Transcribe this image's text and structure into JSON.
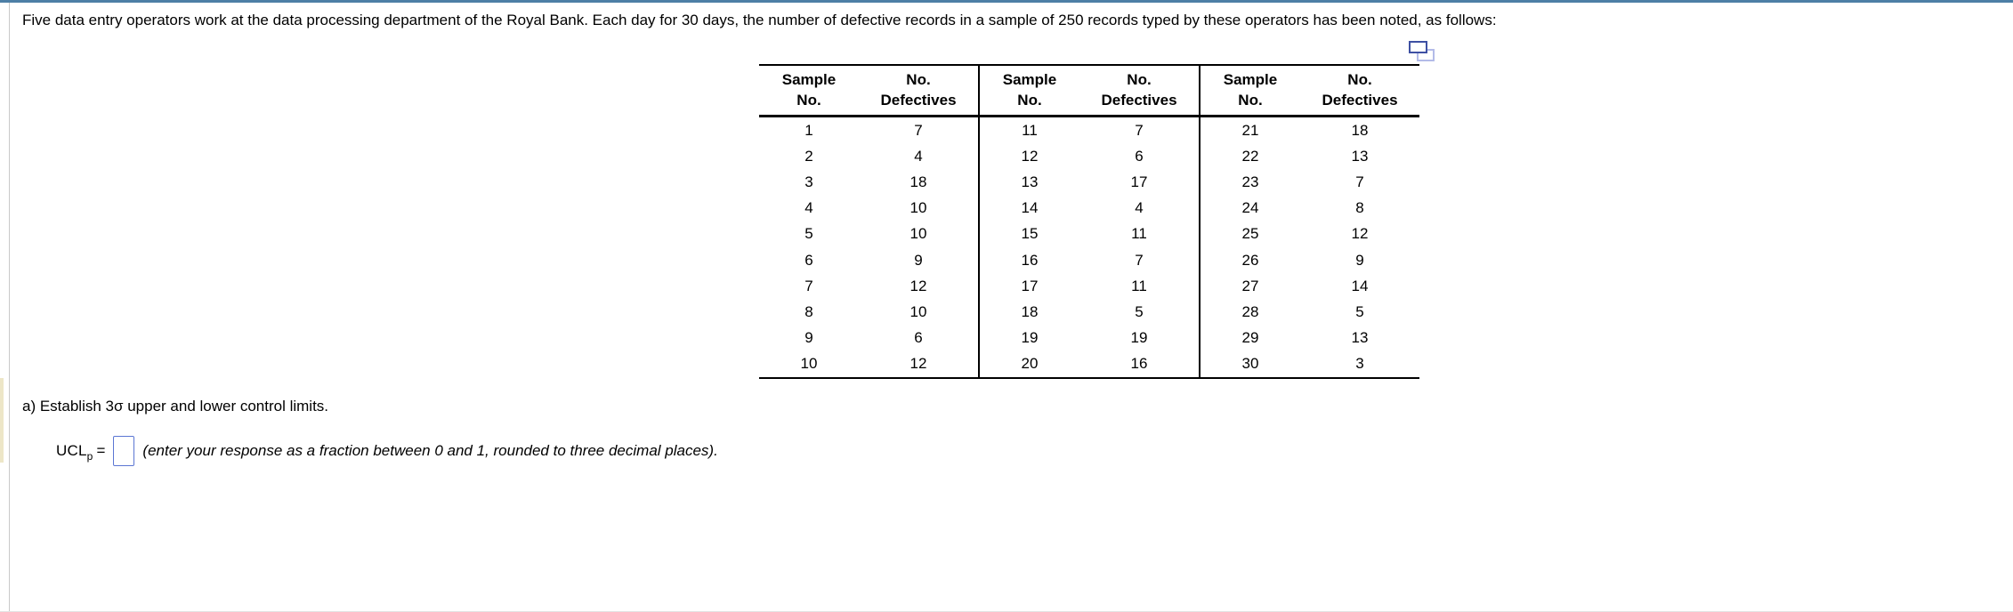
{
  "question": {
    "text": "Five data entry operators work at the data processing department of the Royal Bank. Each day for 30 days, the number of defective records in a sample of 250 records typed by these operators has been noted, as follows:"
  },
  "icons": {
    "copy_icon": "copy-popout-icon"
  },
  "table": {
    "column_headers": [
      {
        "line1": "Sample",
        "line2": "No."
      },
      {
        "line1": "No.",
        "line2": "Defectives"
      }
    ],
    "groups": [
      {
        "rows": [
          [
            1,
            7
          ],
          [
            2,
            4
          ],
          [
            3,
            18
          ],
          [
            4,
            10
          ],
          [
            5,
            10
          ],
          [
            6,
            9
          ],
          [
            7,
            12
          ],
          [
            8,
            10
          ],
          [
            9,
            6
          ],
          [
            10,
            12
          ]
        ]
      },
      {
        "rows": [
          [
            11,
            7
          ],
          [
            12,
            6
          ],
          [
            13,
            17
          ],
          [
            14,
            4
          ],
          [
            15,
            11
          ],
          [
            16,
            7
          ],
          [
            17,
            11
          ],
          [
            18,
            5
          ],
          [
            19,
            19
          ],
          [
            20,
            16
          ]
        ]
      },
      {
        "rows": [
          [
            21,
            18
          ],
          [
            22,
            13
          ],
          [
            23,
            7
          ],
          [
            24,
            8
          ],
          [
            25,
            12
          ],
          [
            26,
            9
          ],
          [
            27,
            14
          ],
          [
            28,
            5
          ],
          [
            29,
            13
          ],
          [
            30,
            3
          ]
        ]
      }
    ]
  },
  "part_a": {
    "prompt": "a) Establish 3σ upper and lower control limits.",
    "ucl_label": "UCL",
    "ucl_subscript": "p",
    "equals": "=",
    "input_value": "",
    "instruction": "(enter your response as a fraction between 0 and 1, rounded to three decimal places)."
  },
  "colors": {
    "top_accent": "#4d7fa6",
    "left_border": "#c9c9c9",
    "left_strip": "#ede6c7",
    "input_border": "#5b76d3",
    "icon_front": "#3e50a3",
    "icon_back": "#b3bbe8",
    "table_border": "#000000",
    "text": "#000000"
  }
}
